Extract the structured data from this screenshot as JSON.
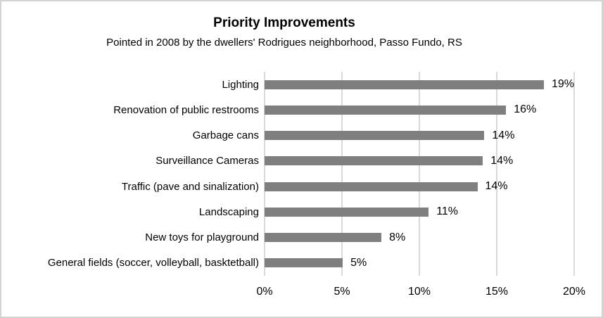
{
  "chart": {
    "title": "Priority Improvements",
    "subtitle": "Pointed in 2008 by the dwellers' Rodrigues neighborhood, Passo Fundo, RS"
  },
  "chart_data": {
    "type": "bar",
    "orientation": "horizontal",
    "title": "Priority Improvements",
    "subtitle": "Pointed in 2008 by the dwellers' Rodrigues neighborhood, Passo Fundo, RS",
    "categories": [
      "Lighting",
      "Renovation of public restrooms",
      "Garbage cans",
      "Surveillance Cameras",
      "Traffic (pave and sinalization)",
      "Landscaping",
      "New toys for playground",
      "General fields (soccer, volleyball, basktetball)"
    ],
    "values": [
      19,
      16,
      14,
      14,
      14,
      11,
      8,
      5
    ],
    "value_labels": [
      "19%",
      "16%",
      "14%",
      "14%",
      "14%",
      "11%",
      "8%",
      "5%"
    ],
    "bar_lengths_pct": [
      18.95,
      15.6,
      14.2,
      14.1,
      13.75,
      10.6,
      7.55,
      5.05
    ],
    "xlim": [
      0,
      20
    ],
    "x_ticks": [
      {
        "value": 0,
        "label": "0%"
      },
      {
        "value": 5,
        "label": "5%"
      },
      {
        "value": 10,
        "label": "10%"
      },
      {
        "value": 15,
        "label": "15%"
      },
      {
        "value": 20,
        "label": "20%"
      }
    ],
    "grid": true,
    "legend": "none",
    "bar_color": "#7f7f7f",
    "gridline_color": "#d9d9d9",
    "text_color": "#000000"
  }
}
